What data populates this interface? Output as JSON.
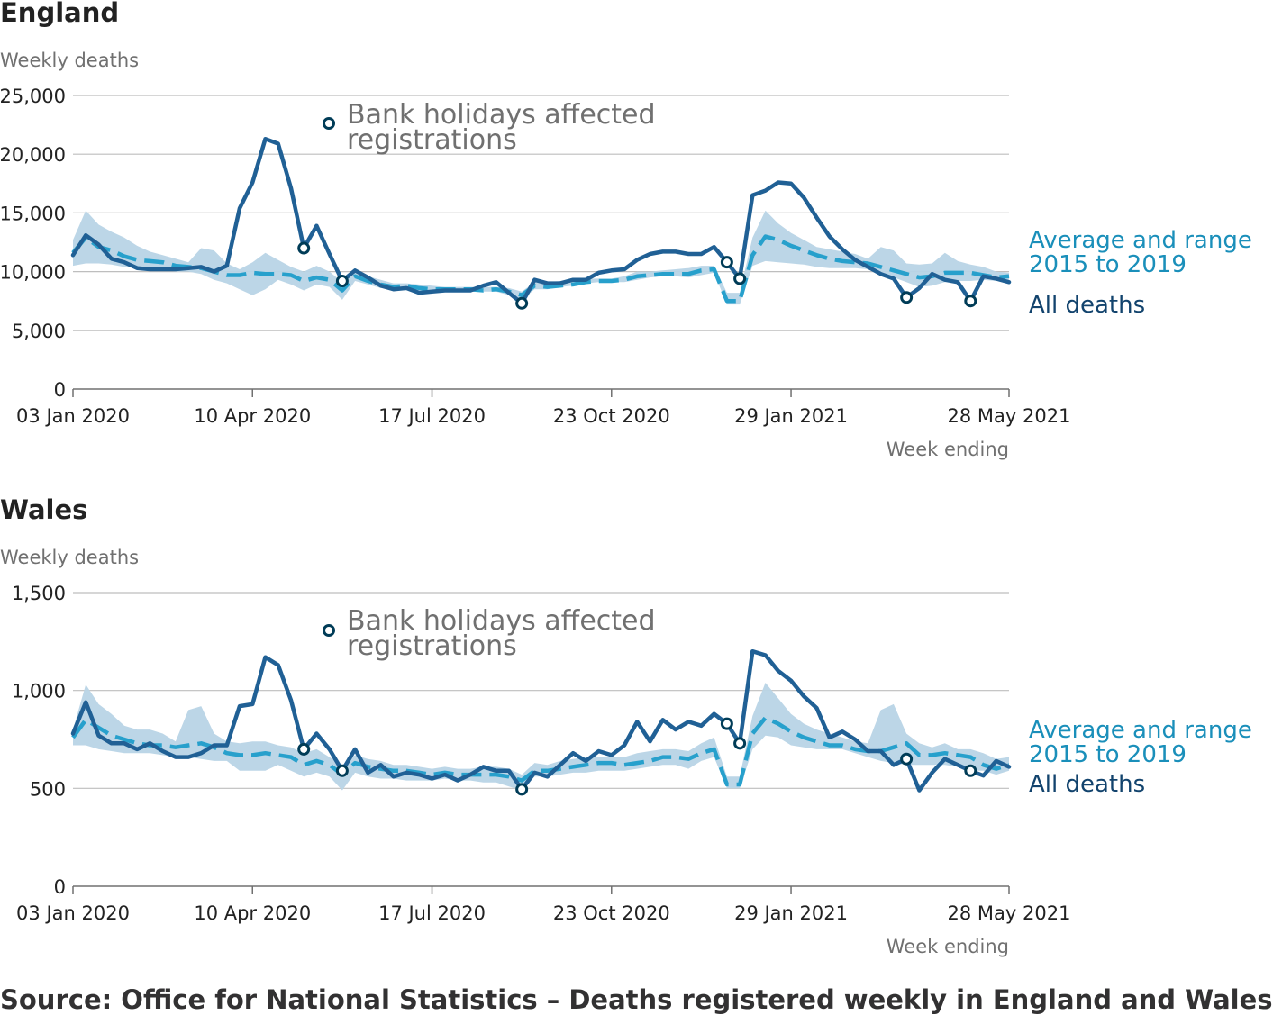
{
  "source_note": "Source: Office for National Statistics – Deaths registered weekly in England and Wales",
  "colors": {
    "all_deaths": "#206095",
    "average": "#27a0cc",
    "range": "#b8d4e6",
    "grid": "#bebebe",
    "axis": "#707070",
    "marker_stroke": "#003c57"
  },
  "chart_data": [
    {
      "type": "line",
      "title": "England",
      "ylabel": "Weekly deaths",
      "xlabel": "Week ending",
      "ylim": [
        0,
        25000
      ],
      "yticks": [
        0,
        5000,
        10000,
        15000,
        20000,
        25000
      ],
      "ytick_labels": [
        "0",
        "5,000",
        "10,000",
        "15,000",
        "20,000",
        "25,000"
      ],
      "xtick_labels": [
        "03 Jan 2020",
        "10 Apr 2020",
        "17 Jul 2020",
        "23 Oct 2020",
        "29 Jan 2021",
        "28 May 2021"
      ],
      "xtick_weeks": [
        0,
        14,
        28,
        42,
        56,
        73
      ],
      "week_range": [
        0,
        73
      ],
      "grid": true,
      "annotation": "Bank holidays affected registrations",
      "legend": [
        "Average and range 2015 to 2019",
        "All deaths"
      ],
      "legend_lines": [
        [
          "Average and range",
          "2015 to 2019"
        ],
        [
          "All deaths"
        ]
      ],
      "legend_position": "right",
      "series": [
        {
          "name": "All deaths",
          "style": "solid",
          "values": [
            11400,
            13100,
            12300,
            11100,
            10800,
            10300,
            10200,
            10200,
            10200,
            10300,
            10400,
            10000,
            10500,
            15400,
            17600,
            21300,
            20900,
            17100,
            12000,
            13900,
            11500,
            9200,
            10100,
            9500,
            8800,
            8500,
            8600,
            8200,
            8300,
            8400,
            8400,
            8400,
            8800,
            9100,
            8200,
            7300,
            9300,
            9000,
            9000,
            9300,
            9300,
            9900,
            10100,
            10200,
            11000,
            11500,
            11700,
            11700,
            11500,
            11500,
            12100,
            10800,
            9400,
            16500,
            16900,
            17600,
            17500,
            16300,
            14600,
            13000,
            11900,
            11000,
            10400,
            9800,
            9400,
            7800,
            8600,
            9800,
            9300,
            9100,
            7500,
            9600,
            9400,
            9100
          ],
          "markers": [
            18,
            21,
            35,
            51,
            52,
            65,
            70
          ]
        },
        {
          "name": "Average and range 2015 to 2019",
          "style": "dashed",
          "values": [
            11600,
            12900,
            12100,
            11800,
            11300,
            11000,
            10900,
            10800,
            10500,
            10400,
            10300,
            10000,
            9700,
            9700,
            9900,
            9800,
            9800,
            9700,
            9200,
            9500,
            9300,
            8400,
            9600,
            9200,
            8900,
            8700,
            8800,
            8600,
            8500,
            8500,
            8500,
            8500,
            8400,
            8500,
            8300,
            8000,
            8800,
            8700,
            8800,
            8900,
            9100,
            9200,
            9200,
            9300,
            9600,
            9700,
            9800,
            9800,
            9800,
            10100,
            10200,
            7500,
            7500,
            11400,
            13000,
            12700,
            12200,
            11800,
            11400,
            11100,
            10900,
            10800,
            10700,
            10400,
            10100,
            9800,
            9500,
            9600,
            9900,
            9900,
            9900,
            9700,
            9500,
            9600
          ],
          "range_low": [
            10500,
            10700,
            10700,
            10600,
            10400,
            10300,
            10200,
            10200,
            10000,
            10000,
            9800,
            9300,
            9000,
            8500,
            8000,
            8500,
            9300,
            8900,
            8400,
            8900,
            8700,
            7600,
            9200,
            8900,
            8600,
            8500,
            8500,
            8400,
            8300,
            8300,
            8300,
            8300,
            8300,
            8300,
            8000,
            7600,
            8500,
            8500,
            8700,
            8800,
            9000,
            9100,
            9100,
            9100,
            9300,
            9500,
            9600,
            9600,
            9500,
            9700,
            9900,
            7200,
            7200,
            10500,
            10900,
            10800,
            10700,
            10600,
            10400,
            10300,
            10300,
            10300,
            10200,
            9900,
            9500,
            9100,
            8700,
            8800,
            9100,
            9200,
            9200,
            9300,
            9200,
            9300
          ],
          "range_high": [
            12700,
            15200,
            14000,
            13400,
            12900,
            12200,
            11700,
            11400,
            11100,
            10800,
            12000,
            11800,
            10700,
            10200,
            10800,
            11600,
            11000,
            10400,
            10000,
            10500,
            10000,
            9100,
            10100,
            9600,
            9300,
            9000,
            9000,
            8900,
            8800,
            8700,
            8700,
            8700,
            8700,
            8700,
            8600,
            8300,
            9100,
            9100,
            9200,
            9300,
            9400,
            9400,
            9400,
            9600,
            10000,
            10000,
            10100,
            10200,
            10300,
            10500,
            10500,
            8200,
            8200,
            12900,
            15200,
            14100,
            13300,
            12700,
            12100,
            11900,
            11700,
            11500,
            11100,
            12100,
            11800,
            10700,
            10600,
            10700,
            11600,
            10900,
            10600,
            10400,
            10000,
            9900
          ]
        }
      ]
    },
    {
      "type": "line",
      "title": "Wales",
      "ylabel": "Weekly deaths",
      "xlabel": "Week ending",
      "ylim": [
        0,
        1500
      ],
      "yticks": [
        0,
        500,
        1000,
        1500
      ],
      "ytick_labels": [
        "0",
        "500",
        "1,000",
        "1,500"
      ],
      "xtick_labels": [
        "03 Jan 2020",
        "10 Apr 2020",
        "17 Jul 2020",
        "23 Oct 2020",
        "29 Jan 2021",
        "28 May 2021"
      ],
      "xtick_weeks": [
        0,
        14,
        28,
        42,
        56,
        73
      ],
      "week_range": [
        0,
        73
      ],
      "grid": true,
      "annotation": "Bank holidays affected registrations",
      "legend": [
        "Average and range 2015 to 2019",
        "All deaths"
      ],
      "legend_lines": [
        [
          "Average and range",
          "2015 to 2019"
        ],
        [
          "All deaths"
        ]
      ],
      "legend_position": "right",
      "series": [
        {
          "name": "All deaths",
          "style": "solid",
          "values": [
            780,
            940,
            770,
            730,
            730,
            700,
            730,
            690,
            660,
            660,
            680,
            720,
            720,
            920,
            930,
            1170,
            1130,
            950,
            700,
            780,
            700,
            590,
            700,
            580,
            620,
            560,
            580,
            570,
            550,
            570,
            540,
            570,
            610,
            590,
            590,
            495,
            580,
            560,
            620,
            680,
            640,
            690,
            670,
            720,
            840,
            740,
            850,
            800,
            840,
            820,
            880,
            830,
            730,
            1200,
            1180,
            1100,
            1050,
            970,
            910,
            760,
            790,
            750,
            690,
            690,
            620,
            650,
            490,
            580,
            650,
            620,
            590,
            565,
            640,
            610
          ],
          "markers": [
            18,
            21,
            35,
            51,
            52,
            65,
            70
          ]
        },
        {
          "name": "Average and range 2015 to 2019",
          "style": "dashed",
          "values": [
            760,
            850,
            810,
            770,
            750,
            730,
            720,
            720,
            710,
            720,
            730,
            710,
            680,
            670,
            670,
            680,
            670,
            660,
            620,
            640,
            620,
            570,
            630,
            610,
            600,
            590,
            590,
            580,
            570,
            580,
            570,
            570,
            570,
            570,
            560,
            540,
            590,
            590,
            600,
            610,
            620,
            630,
            630,
            620,
            630,
            640,
            660,
            660,
            650,
            680,
            700,
            520,
            520,
            780,
            860,
            830,
            790,
            760,
            740,
            720,
            720,
            700,
            690,
            690,
            710,
            730,
            670,
            670,
            680,
            670,
            660,
            620,
            600,
            620
          ],
          "range_low": [
            720,
            720,
            700,
            690,
            680,
            680,
            680,
            670,
            660,
            660,
            650,
            640,
            640,
            590,
            590,
            590,
            620,
            590,
            560,
            580,
            560,
            490,
            580,
            560,
            550,
            550,
            540,
            540,
            540,
            550,
            540,
            540,
            530,
            530,
            510,
            490,
            560,
            560,
            570,
            580,
            580,
            590,
            590,
            590,
            600,
            610,
            620,
            620,
            600,
            640,
            660,
            500,
            500,
            700,
            770,
            760,
            720,
            710,
            700,
            700,
            700,
            680,
            660,
            640,
            630,
            620,
            620,
            620,
            620,
            610,
            590,
            590,
            570,
            590
          ],
          "range_high": [
            800,
            1030,
            930,
            880,
            820,
            800,
            800,
            780,
            740,
            900,
            920,
            780,
            740,
            730,
            740,
            740,
            720,
            710,
            680,
            700,
            660,
            620,
            670,
            650,
            640,
            620,
            620,
            610,
            600,
            610,
            600,
            600,
            610,
            610,
            600,
            570,
            630,
            620,
            640,
            650,
            660,
            660,
            660,
            660,
            680,
            690,
            700,
            700,
            690,
            730,
            760,
            560,
            560,
            870,
            1040,
            960,
            880,
            830,
            800,
            780,
            760,
            740,
            730,
            900,
            930,
            780,
            730,
            710,
            730,
            700,
            700,
            680,
            650,
            660
          ]
        }
      ]
    }
  ]
}
